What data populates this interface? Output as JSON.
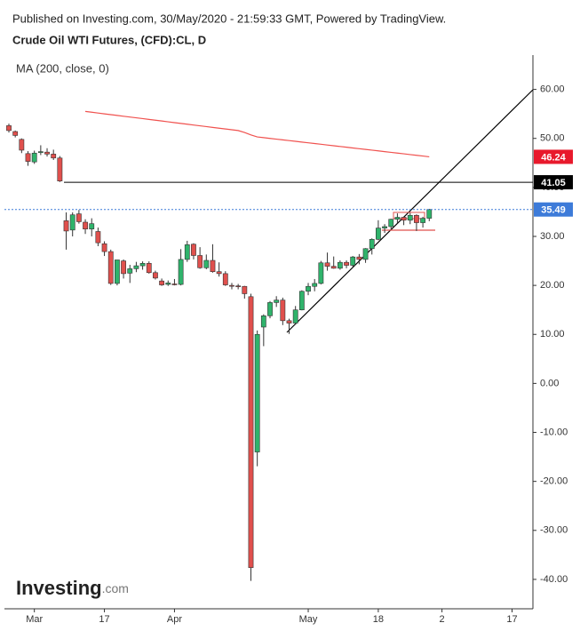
{
  "chart_data": {
    "type": "candlestick",
    "source": "Published on Investing.com, 30/May/2020 - 21:59:33 GMT, Powered by TradingView.",
    "title": "Crude Oil WTI Futures, (CFD):CL, D",
    "logo_main": "Investing",
    "logo_suffix": ".com",
    "up_color": "#2fb36b",
    "down_color": "#e0504d",
    "categories": [
      null,
      null,
      null,
      null,
      "Mar",
      null,
      null,
      null,
      null,
      null,
      null,
      null,
      null,
      null,
      null,
      "17",
      null,
      null,
      null,
      null,
      null,
      null,
      null,
      null,
      null,
      null,
      "Apr",
      null,
      null,
      null,
      null,
      null,
      null,
      null,
      null,
      null,
      null,
      null,
      null,
      null,
      null,
      null,
      null,
      null,
      null,
      null,
      null,
      "May",
      null,
      null,
      null,
      null,
      null,
      null,
      null,
      null,
      null,
      null,
      "18",
      null,
      null,
      null,
      null,
      null,
      null,
      null,
      null,
      null,
      "2",
      null,
      null,
      null,
      null,
      null,
      null,
      null,
      null,
      null,
      null,
      "17",
      null,
      null,
      null
    ],
    "open": [
      52.6,
      51.4,
      49.8,
      46.9,
      45.2,
      47.1,
      47.2,
      46.8,
      46.0,
      33.2,
      31.3,
      34.6,
      32.9,
      31.5,
      31.0,
      28.5,
      26.9,
      20.4,
      25.0,
      22.5,
      23.4,
      24.0,
      24.5,
      22.6,
      20.9,
      20.2,
      20.3,
      20.2,
      25.3,
      28.4,
      26.1,
      23.6,
      25.1,
      22.8,
      22.4,
      20.0,
      19.9,
      19.8,
      17.7,
      -14.0,
      11.5,
      13.8,
      16.5,
      17.0,
      12.8,
      12.3,
      15.0,
      18.8,
      19.8,
      20.4,
      24.6,
      23.9,
      23.5,
      24.7,
      24.1,
      25.8,
      25.3,
      27.5,
      29.4,
      31.7,
      32.0,
      33.5,
      33.9,
      33.3,
      34.3,
      32.8,
      33.7,
      null,
      null,
      null,
      null,
      null,
      null,
      null,
      null,
      null,
      null,
      null,
      null,
      null,
      null,
      null,
      null
    ],
    "high": [
      53.0,
      51.6,
      50.0,
      47.4,
      47.5,
      48.6,
      48.0,
      47.7,
      46.4,
      34.9,
      34.9,
      35.4,
      33.5,
      33.7,
      31.8,
      29.0,
      27.3,
      25.2,
      25.3,
      24.2,
      24.8,
      24.9,
      24.9,
      23.0,
      21.4,
      21.0,
      21.3,
      27.4,
      29.1,
      28.6,
      27.8,
      26.3,
      28.4,
      24.7,
      22.9,
      20.5,
      20.3,
      19.9,
      18.3,
      10.8,
      14.1,
      16.8,
      17.8,
      17.5,
      13.2,
      15.8,
      19.0,
      20.5,
      21.3,
      25.0,
      26.7,
      25.9,
      25.1,
      25.1,
      26.0,
      26.4,
      27.6,
      29.6,
      33.3,
      32.5,
      33.6,
      34.7,
      34.0,
      34.8,
      34.5,
      34.0,
      35.6,
      null,
      null,
      null,
      null,
      null,
      null,
      null,
      null,
      null,
      null,
      null,
      null,
      null,
      null,
      null,
      null
    ],
    "low": [
      51.2,
      50.2,
      47.0,
      44.4,
      44.8,
      46.6,
      46.3,
      45.6,
      41.1,
      27.3,
      30.0,
      32.6,
      30.5,
      30.0,
      28.0,
      26.0,
      20.1,
      20.0,
      21.4,
      20.5,
      22.7,
      23.2,
      22.4,
      21.2,
      19.9,
      19.9,
      20.0,
      20.0,
      24.8,
      25.3,
      23.4,
      23.3,
      22.6,
      21.8,
      19.9,
      19.2,
      19.2,
      17.3,
      -40.3,
      -16.9,
      7.6,
      13.3,
      15.6,
      11.9,
      10.1,
      12.0,
      14.9,
      18.0,
      18.8,
      20.2,
      23.0,
      23.4,
      23.2,
      23.5,
      23.8,
      24.3,
      24.6,
      26.3,
      29.2,
      30.7,
      31.4,
      32.7,
      32.3,
      32.5,
      31.1,
      31.8,
      33.1,
      null,
      null,
      null,
      null,
      null,
      null,
      null,
      null,
      null,
      null,
      null,
      null,
      null,
      null,
      null,
      null
    ],
    "close": [
      51.6,
      50.6,
      47.6,
      45.3,
      47.0,
      47.3,
      46.8,
      46.0,
      41.3,
      31.1,
      34.4,
      33.0,
      31.5,
      32.6,
      28.7,
      26.9,
      20.4,
      25.2,
      22.4,
      23.4,
      24.0,
      24.5,
      22.6,
      21.5,
      20.1,
      20.5,
      20.2,
      25.3,
      28.3,
      26.1,
      23.6,
      25.1,
      22.8,
      22.4,
      20.1,
      19.9,
      19.8,
      18.3,
      -37.6,
      10.0,
      13.8,
      16.5,
      17.0,
      12.8,
      12.3,
      15.0,
      18.8,
      19.8,
      20.4,
      24.6,
      23.9,
      23.5,
      24.7,
      24.1,
      25.8,
      25.3,
      27.5,
      29.4,
      31.7,
      32.0,
      33.5,
      33.9,
      33.3,
      34.3,
      32.8,
      33.7,
      35.49,
      null,
      null,
      null,
      null,
      null,
      null,
      null,
      null,
      null,
      null,
      null,
      null,
      null,
      null,
      null,
      null
    ],
    "series": [
      {
        "name": "MA (200, close, 0)",
        "color": "#f0524f",
        "values": [
          null,
          null,
          null,
          null,
          null,
          null,
          null,
          null,
          null,
          null,
          null,
          null,
          55.5,
          55.34,
          55.18,
          55.01,
          54.85,
          54.69,
          54.52,
          54.36,
          54.2,
          54.04,
          53.87,
          53.71,
          53.55,
          53.38,
          53.22,
          53.06,
          52.9,
          52.73,
          52.57,
          52.41,
          52.24,
          52.08,
          51.92,
          51.76,
          51.6,
          51.2,
          50.7,
          50.3,
          50.15,
          50.0,
          49.85,
          49.7,
          49.55,
          49.4,
          49.25,
          49.1,
          48.95,
          48.8,
          48.65,
          48.5,
          48.35,
          48.2,
          48.05,
          47.9,
          47.75,
          47.6,
          47.45,
          47.3,
          47.15,
          47.0,
          46.85,
          46.7,
          46.55,
          46.4,
          46.24,
          null,
          null,
          null,
          null,
          null,
          null,
          null,
          null,
          null,
          null,
          null,
          null,
          null,
          null,
          null,
          null
        ]
      }
    ],
    "price_tags": [
      {
        "value": 46.24,
        "color": "#e8192c",
        "line": false
      },
      {
        "value": 41.05,
        "color": "#000000",
        "line": true
      },
      {
        "value": 35.49,
        "color": "#3d7bd9",
        "line": true
      }
    ],
    "ylim": [
      -46,
      67
    ],
    "yticks": [
      {
        "value": 60,
        "label": "60.00"
      },
      {
        "value": 50,
        "label": "50.00"
      },
      {
        "value": 40,
        "label": "40.00"
      },
      {
        "value": 30,
        "label": "30.00"
      },
      {
        "value": 20,
        "label": "20.00"
      },
      {
        "value": 10,
        "label": "10.00"
      },
      {
        "value": 0,
        "label": "0.00"
      },
      {
        "value": -10,
        "label": "-10.00"
      },
      {
        "value": -20,
        "label": "-20.00"
      },
      {
        "value": -30,
        "label": "-30.00"
      },
      {
        "value": -40,
        "label": "-40.00"
      }
    ]
  }
}
